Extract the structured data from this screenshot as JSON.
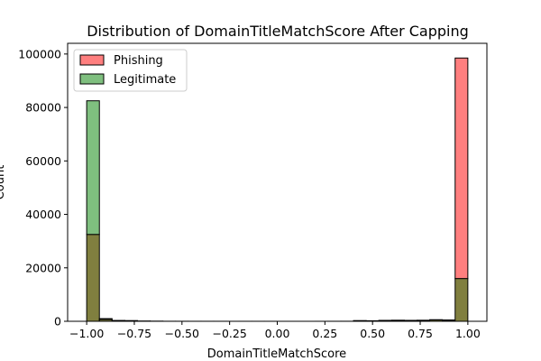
{
  "chart_data": {
    "type": "bar",
    "title": "Distribution of DomainTitleMatchScore After Capping",
    "xlabel": "DomainTitleMatchScore",
    "ylabel": "Count",
    "xlim": [
      -1.1,
      1.1
    ],
    "ylim": [
      0,
      104000
    ],
    "x_ticks": [
      -1.0,
      -0.75,
      -0.5,
      -0.25,
      0.0,
      0.25,
      0.5,
      0.75,
      1.0
    ],
    "x_tick_labels": [
      "−1.00",
      "−0.75",
      "−0.50",
      "−0.25",
      "0.00",
      "0.25",
      "0.50",
      "0.75",
      "1.00"
    ],
    "y_ticks": [
      0,
      20000,
      40000,
      60000,
      80000,
      100000
    ],
    "y_tick_labels": [
      "0",
      "20000",
      "40000",
      "60000",
      "80000",
      "100000"
    ],
    "bin_edges": [
      -1.0,
      -0.9333,
      -0.8667,
      -0.8,
      -0.7333,
      -0.6667,
      -0.6,
      -0.5333,
      -0.4667,
      -0.4,
      -0.3333,
      -0.2667,
      -0.2,
      -0.1333,
      -0.0667,
      0.0,
      0.0667,
      0.1333,
      0.2,
      0.2667,
      0.3333,
      0.4,
      0.4667,
      0.5333,
      0.6,
      0.6667,
      0.7333,
      0.8,
      0.8667,
      0.9333,
      1.0
    ],
    "legend": {
      "position": "upper-left"
    },
    "series": [
      {
        "name": "Phishing",
        "color": "#ff7f7f",
        "values": [
          32500,
          700,
          250,
          200,
          60,
          30,
          20,
          15,
          10,
          10,
          10,
          5,
          5,
          5,
          5,
          0,
          0,
          0,
          5,
          10,
          20,
          200,
          150,
          300,
          350,
          300,
          300,
          500,
          400,
          98500
        ]
      },
      {
        "name": "Legitimate",
        "color": "#7fbf7f",
        "values": [
          82500,
          1000,
          300,
          250,
          80,
          40,
          20,
          15,
          10,
          10,
          10,
          5,
          5,
          5,
          5,
          0,
          0,
          0,
          5,
          10,
          20,
          250,
          200,
          350,
          400,
          350,
          400,
          600,
          500,
          16000
        ]
      }
    ],
    "overlap_color": "#807f3f"
  }
}
